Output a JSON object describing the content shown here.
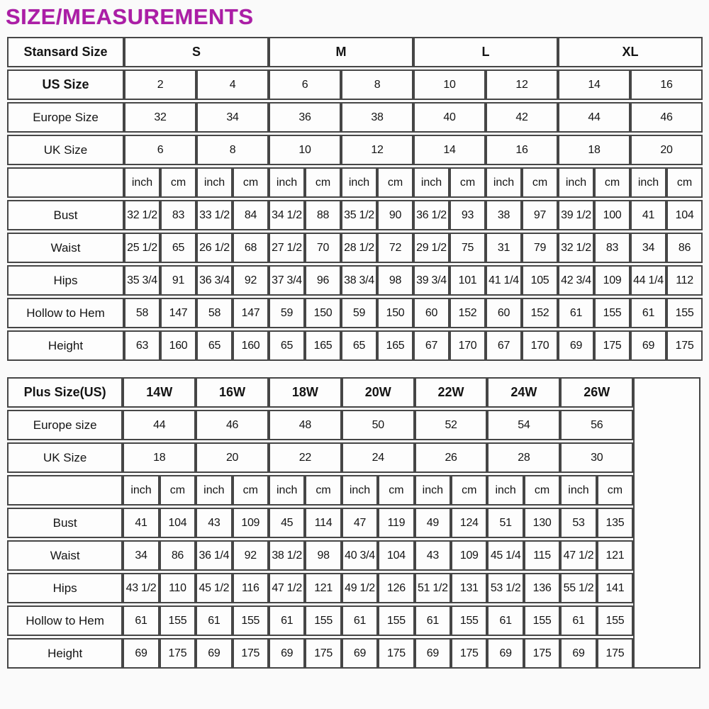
{
  "title": "SIZE/MEASUREMENTS",
  "colors": {
    "title": "#ab1da6",
    "border": "#464646",
    "text": "#141414",
    "cell_background": "#fdfdfd",
    "page_background": "#fafafa"
  },
  "chart_data": [
    {
      "type": "table",
      "name": "standard-size-table",
      "header_row": {
        "label": "Stansard Size",
        "bold": true,
        "group_span": 4,
        "values": [
          "S",
          "M",
          "L",
          "XL"
        ]
      },
      "size_rows": [
        {
          "label": "US Size",
          "bold": true,
          "values": [
            "2",
            "4",
            "6",
            "8",
            "10",
            "12",
            "14",
            "16"
          ]
        },
        {
          "label": "Europe Size",
          "bold": false,
          "values": [
            "32",
            "34",
            "36",
            "38",
            "40",
            "42",
            "44",
            "46"
          ]
        },
        {
          "label": "UK Size",
          "bold": false,
          "values": [
            "6",
            "8",
            "10",
            "12",
            "14",
            "16",
            "18",
            "20"
          ]
        }
      ],
      "units": [
        "inch",
        "cm"
      ],
      "size_column_count": 8,
      "measurement_rows": [
        {
          "label": "Bust",
          "values": [
            "32 1/2",
            "83",
            "33 1/2",
            "84",
            "34 1/2",
            "88",
            "35 1/2",
            "90",
            "36 1/2",
            "93",
            "38",
            "97",
            "39 1/2",
            "100",
            "41",
            "104"
          ]
        },
        {
          "label": "Waist",
          "values": [
            "25 1/2",
            "65",
            "26 1/2",
            "68",
            "27 1/2",
            "70",
            "28 1/2",
            "72",
            "29 1/2",
            "75",
            "31",
            "79",
            "32 1/2",
            "83",
            "34",
            "86"
          ]
        },
        {
          "label": "Hips",
          "values": [
            "35 3/4",
            "91",
            "36 3/4",
            "92",
            "37 3/4",
            "96",
            "38 3/4",
            "98",
            "39 3/4",
            "101",
            "41 1/4",
            "105",
            "42 3/4",
            "109",
            "44 1/4",
            "112"
          ]
        },
        {
          "label": "Hollow to Hem",
          "values": [
            "58",
            "147",
            "58",
            "147",
            "59",
            "150",
            "59",
            "150",
            "60",
            "152",
            "60",
            "152",
            "61",
            "155",
            "61",
            "155"
          ]
        },
        {
          "label": "Height",
          "values": [
            "63",
            "160",
            "65",
            "160",
            "65",
            "165",
            "65",
            "165",
            "67",
            "170",
            "67",
            "170",
            "69",
            "175",
            "69",
            "175"
          ]
        }
      ],
      "trailing_empty_column": false
    },
    {
      "type": "table",
      "name": "plus-size-table",
      "header_row": {
        "label": "Plus Size(US)",
        "bold": true,
        "group_span": 2,
        "values": [
          "14W",
          "16W",
          "18W",
          "20W",
          "22W",
          "24W",
          "26W"
        ]
      },
      "size_rows": [
        {
          "label": "Europe size",
          "bold": false,
          "values": [
            "44",
            "46",
            "48",
            "50",
            "52",
            "54",
            "56"
          ]
        },
        {
          "label": "UK Size",
          "bold": false,
          "values": [
            "18",
            "20",
            "22",
            "24",
            "26",
            "28",
            "30"
          ]
        }
      ],
      "units": [
        "inch",
        "cm"
      ],
      "size_column_count": 7,
      "measurement_rows": [
        {
          "label": "Bust",
          "values": [
            "41",
            "104",
            "43",
            "109",
            "45",
            "114",
            "47",
            "119",
            "49",
            "124",
            "51",
            "130",
            "53",
            "135"
          ]
        },
        {
          "label": "Waist",
          "values": [
            "34",
            "86",
            "36 1/4",
            "92",
            "38 1/2",
            "98",
            "40 3/4",
            "104",
            "43",
            "109",
            "45 1/4",
            "115",
            "47 1/2",
            "121"
          ]
        },
        {
          "label": "Hips",
          "values": [
            "43 1/2",
            "110",
            "45 1/2",
            "116",
            "47 1/2",
            "121",
            "49 1/2",
            "126",
            "51 1/2",
            "131",
            "53 1/2",
            "136",
            "55 1/2",
            "141"
          ]
        },
        {
          "label": "Hollow to Hem",
          "values": [
            "61",
            "155",
            "61",
            "155",
            "61",
            "155",
            "61",
            "155",
            "61",
            "155",
            "61",
            "155",
            "61",
            "155"
          ]
        },
        {
          "label": "Height",
          "values": [
            "69",
            "175",
            "69",
            "175",
            "69",
            "175",
            "69",
            "175",
            "69",
            "175",
            "69",
            "175",
            "69",
            "175"
          ]
        }
      ],
      "trailing_empty_column": true
    }
  ]
}
